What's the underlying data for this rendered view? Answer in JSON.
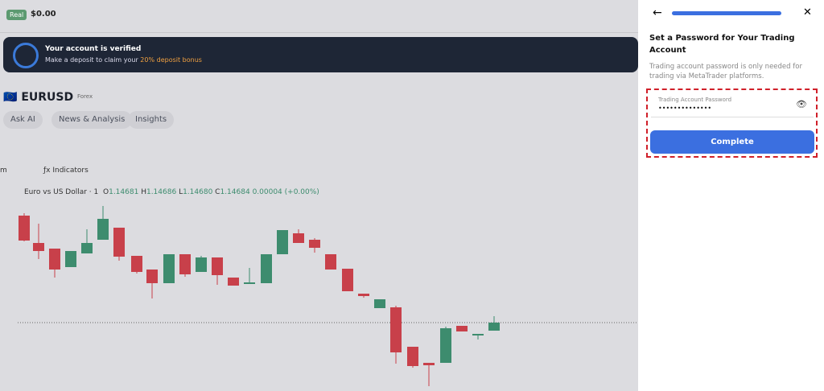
{
  "header": {
    "account_badge": "Real",
    "balance": "$0.00"
  },
  "banner": {
    "title": "Your account is verified",
    "text": "Make a deposit to claim your",
    "highlight": "20% deposit bonus"
  },
  "instrument": {
    "symbol": "EURUSD",
    "market": "Forex",
    "tabs": [
      "Ask AI",
      "News & Analysis",
      "Insights"
    ]
  },
  "toolbar": {
    "interval": "m",
    "indicators": "Indicators"
  },
  "legend": {
    "name": "Euro vs US Dollar · 1",
    "o_label": "O",
    "o": "1.14681",
    "h_label": "H",
    "h": "1.14686",
    "l_label": "L",
    "l": "1.14680",
    "c_label": "C",
    "c": "1.14684",
    "change": "0.00004 (+0.00%)"
  },
  "panel": {
    "title": "Set a Password for Your Trading Account",
    "description": "Trading account password is only needed for trading via MetaTrader platforms.",
    "field_label": "Trading Account Password",
    "field_value": "••••••••••••••",
    "button": "Complete"
  }
}
